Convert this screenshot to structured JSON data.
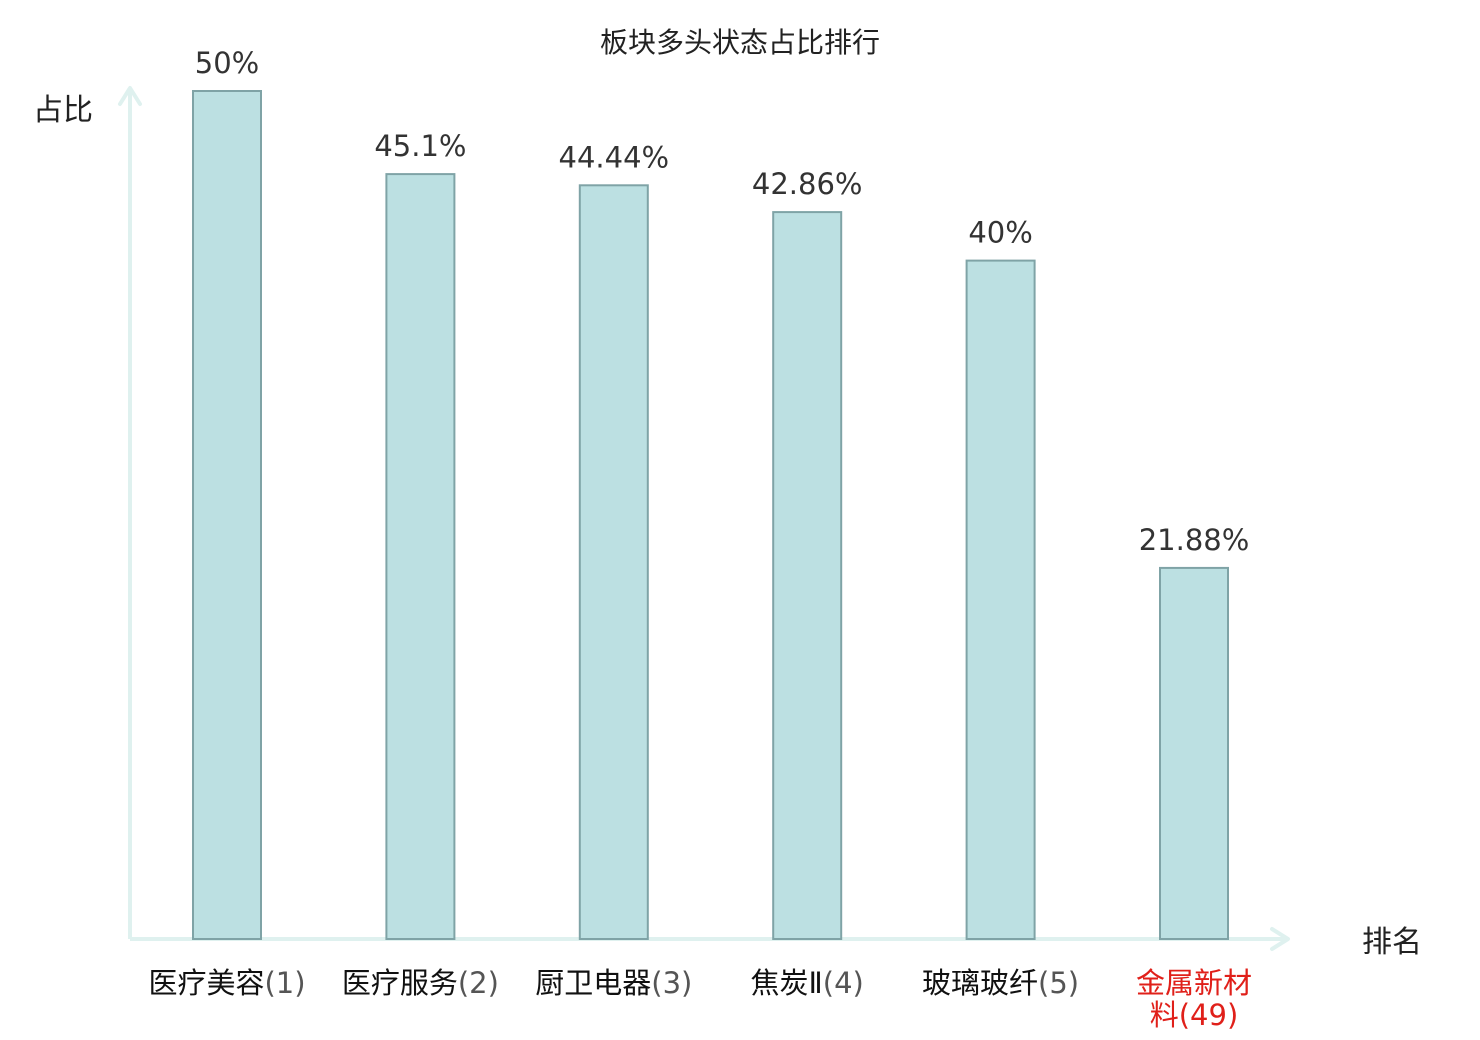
{
  "chart_data": {
    "type": "bar",
    "title": "板块多头状态占比排行",
    "xlabel": "排名",
    "ylabel": "占比",
    "categories": [
      {
        "name": "医疗美容",
        "rank": "(1)"
      },
      {
        "name": "医疗服务",
        "rank": "(2)"
      },
      {
        "name": "厨卫电器",
        "rank": "(3)"
      },
      {
        "name": "焦炭Ⅱ",
        "rank": "(4)"
      },
      {
        "name": "玻璃玻纤",
        "rank": "(5)"
      },
      {
        "name": "金属新材料",
        "rank": "(49)",
        "highlight": true
      }
    ],
    "values": [
      50,
      45.1,
      44.44,
      42.86,
      40,
      21.88
    ],
    "value_labels": [
      "50%",
      "45.1%",
      "44.44%",
      "42.86%",
      "40%",
      "21.88%"
    ],
    "ylim": [
      0,
      50
    ],
    "grid": false,
    "legend": "none",
    "colors": {
      "bar_fill": "#bce0e2",
      "bar_stroke": "#7fa3a6",
      "axis": "#dff1ef",
      "text": "#333333",
      "highlight_text": "#e0201a"
    }
  }
}
